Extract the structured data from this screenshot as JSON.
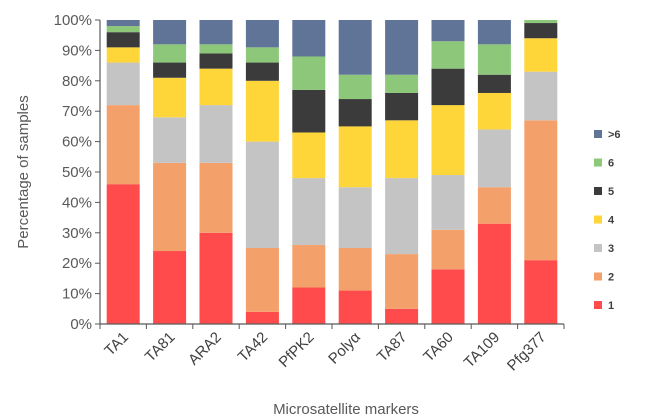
{
  "chart_data": {
    "type": "bar",
    "stacked": true,
    "percent": true,
    "xlabel": "Microsatellite markers",
    "ylabel": "Percentage of samples",
    "ylim": [
      0,
      100
    ],
    "yticks": [
      "0%",
      "10%",
      "20%",
      "30%",
      "40%",
      "50%",
      "60%",
      "70%",
      "80%",
      "90%",
      "100%"
    ],
    "grid": false,
    "legend_position": "right",
    "categories": [
      "TA1",
      "TA81",
      "ARA2",
      "TA42",
      "PfPK2",
      "Polyα",
      "TA87",
      "TA60",
      "TA109",
      "Pfg377"
    ],
    "series": [
      {
        "name": "1",
        "color": "#ff4b4b",
        "values": [
          46,
          24,
          30,
          4,
          12,
          11,
          5,
          18,
          33,
          21
        ]
      },
      {
        "name": "2",
        "color": "#f4a06a",
        "values": [
          26,
          29,
          23,
          21,
          14,
          14,
          18,
          13,
          12,
          46
        ]
      },
      {
        "name": "3",
        "color": "#c4c4c4",
        "values": [
          14,
          15,
          19,
          35,
          22,
          20,
          25,
          18,
          19,
          16
        ]
      },
      {
        "name": "4",
        "color": "#ffd63a",
        "values": [
          5,
          13,
          12,
          20,
          15,
          20,
          19,
          23,
          12,
          11
        ]
      },
      {
        "name": "5",
        "color": "#3b3b3b",
        "values": [
          5,
          5,
          5,
          6,
          14,
          9,
          9,
          12,
          6,
          5
        ]
      },
      {
        "name": "6",
        "color": "#8dc87a",
        "values": [
          2,
          6,
          3,
          5,
          11,
          8,
          6,
          9,
          10,
          1
        ]
      },
      {
        "name": ">6",
        "color": "#5f7497",
        "values": [
          2,
          8,
          8,
          9,
          12,
          18,
          18,
          7,
          8,
          0
        ]
      }
    ]
  }
}
